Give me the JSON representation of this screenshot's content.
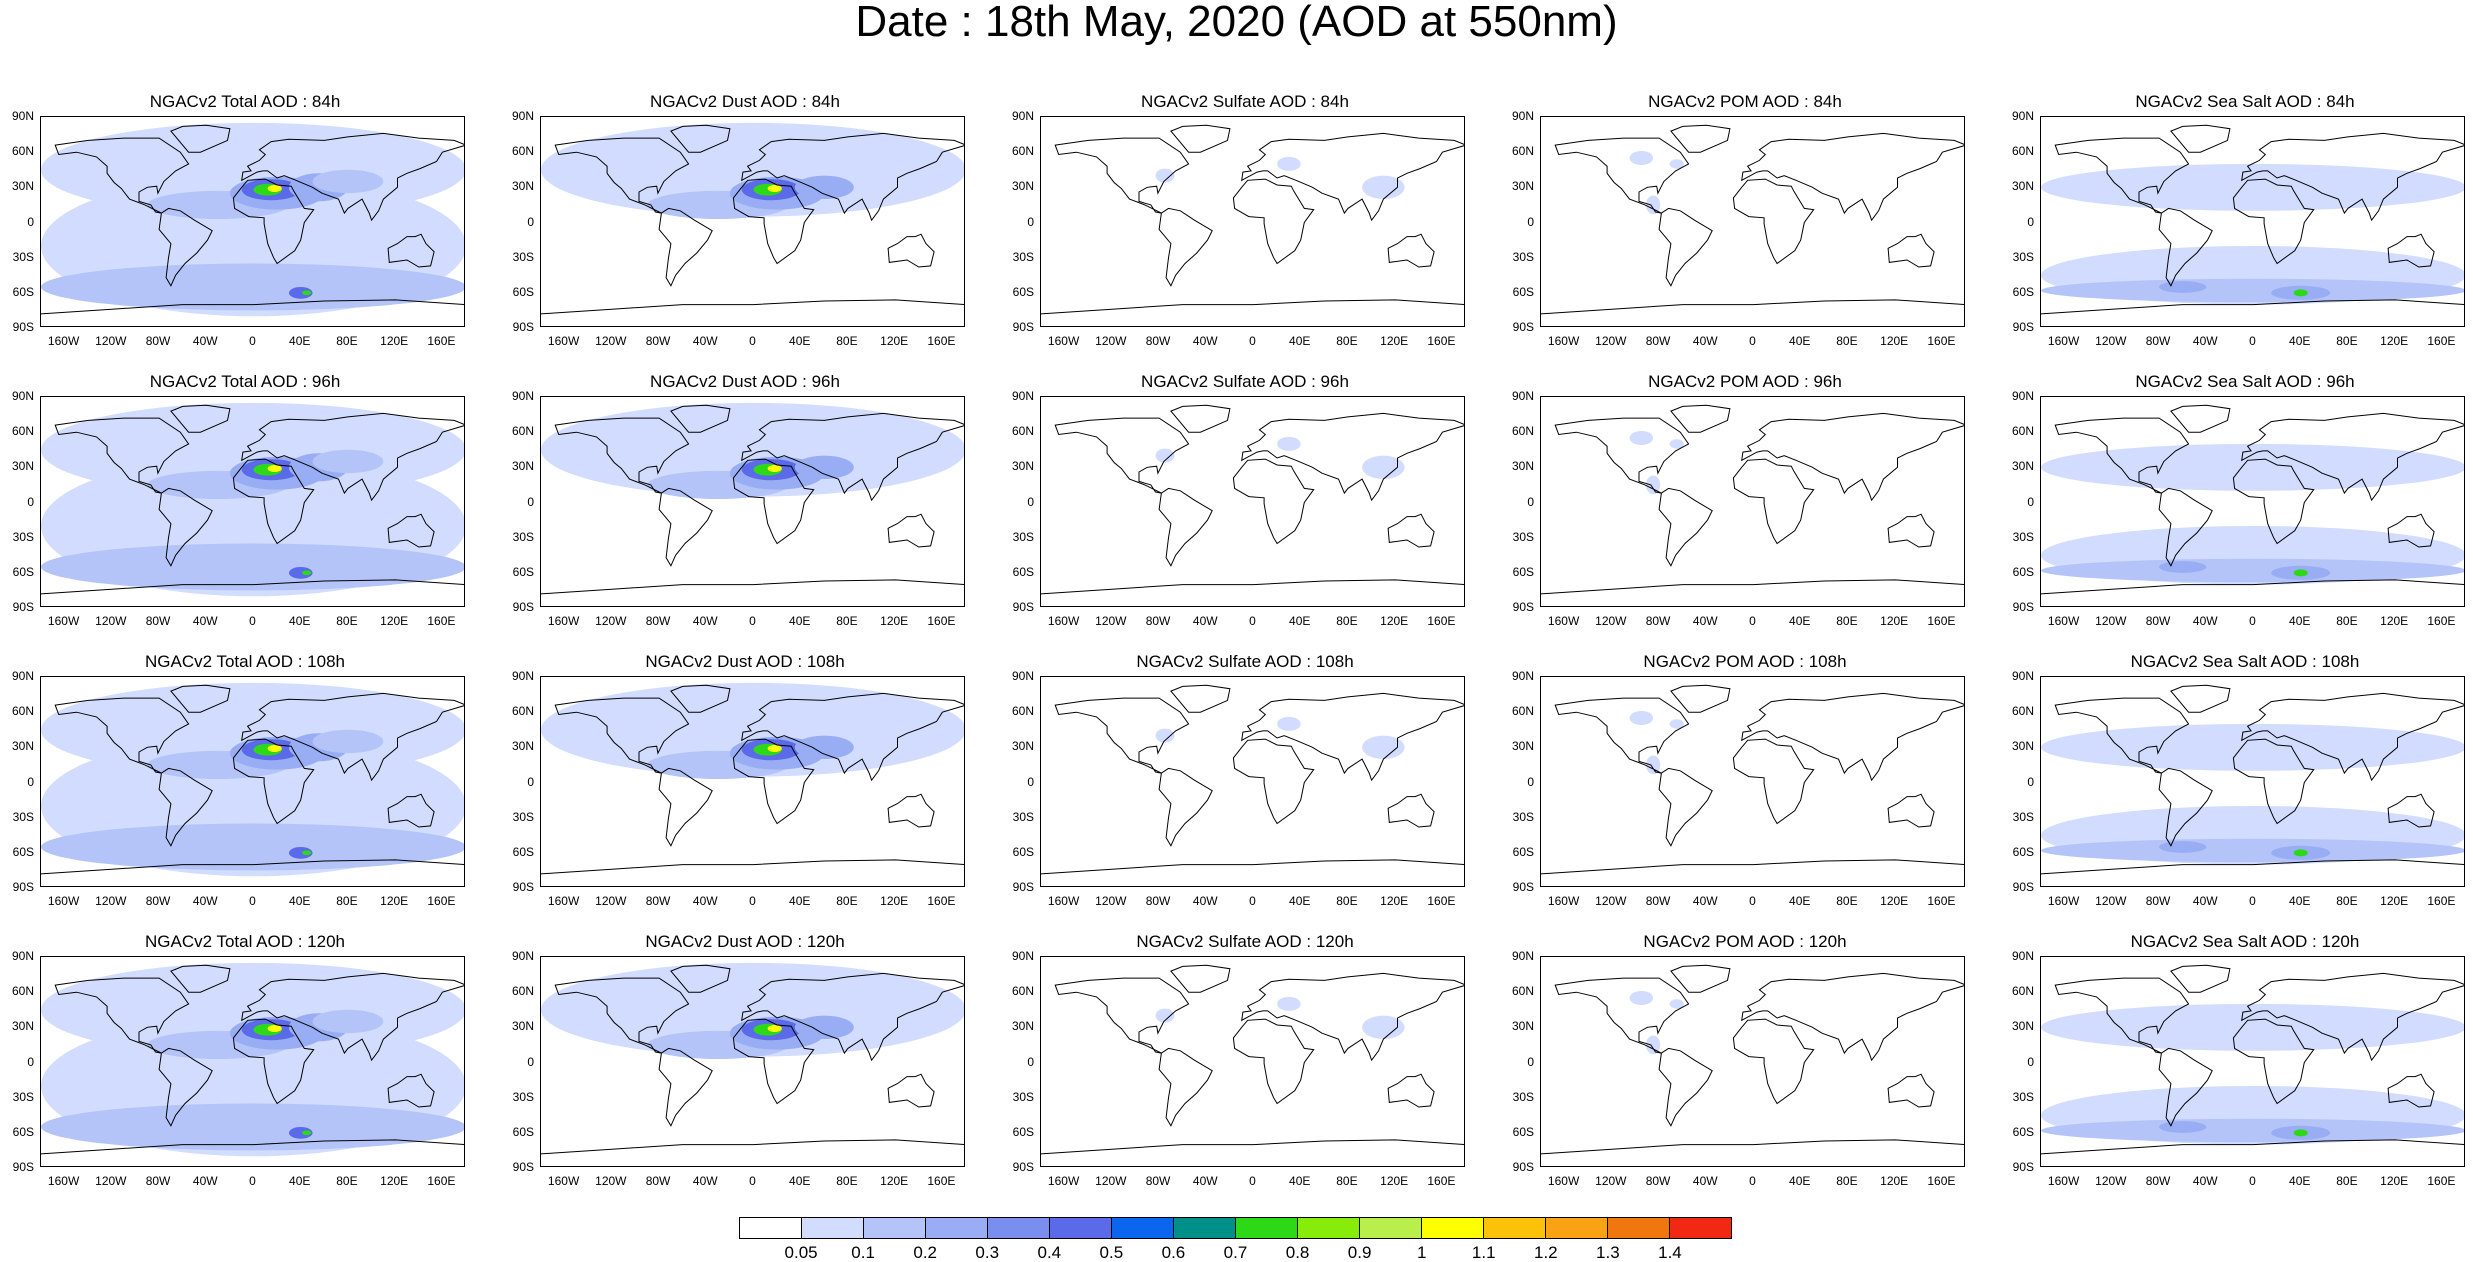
{
  "title": "Date : 18th May, 2020 (AOD at 550nm)",
  "lat_ticks": [
    "90N",
    "60N",
    "30N",
    "0",
    "30S",
    "60S",
    "90S"
  ],
  "lon_ticks_total_dust": [
    "160W",
    "120W",
    "80W",
    "40W",
    "0",
    "40E",
    "80E",
    "120E",
    "160E"
  ],
  "lon_ticks_other": [
    "160W",
    "120W",
    "80W",
    "40W",
    "0",
    "40E",
    "80E",
    "120E",
    "160E"
  ],
  "rows": [
    {
      "panels": [
        "NGACv2 Total AOD : 84h",
        "NGACv2 Dust AOD : 84h",
        "NGACv2 Sulfate AOD : 84h",
        "NGACv2 POM AOD : 84h",
        "NGACv2 Sea Salt AOD : 84h"
      ]
    },
    {
      "panels": [
        "NGACv2 Total AOD : 96h",
        "NGACv2 Dust AOD : 96h",
        "NGACv2 Sulfate AOD : 96h",
        "NGACv2 POM AOD : 96h",
        "NGACv2 Sea Salt AOD : 96h"
      ]
    },
    {
      "panels": [
        "NGACv2 Total AOD : 108h",
        "NGACv2 Dust AOD : 108h",
        "NGACv2 Sulfate AOD : 108h",
        "NGACv2 POM AOD : 108h",
        "NGACv2 Sea Salt AOD : 108h"
      ]
    },
    {
      "panels": [
        "NGACv2 Total AOD : 120h",
        "NGACv2 Dust AOD : 120h",
        "NGACv2 Sulfate AOD : 120h",
        "NGACv2 POM AOD : 120h",
        "NGACv2 Sea Salt  AOD : 120h"
      ]
    }
  ],
  "colorbar": {
    "labels": [
      "0.05",
      "0.1",
      "0.2",
      "0.3",
      "0.4",
      "0.5",
      "0.6",
      "0.7",
      "0.8",
      "0.9",
      "1",
      "1.1",
      "1.2",
      "1.3",
      "1.4"
    ],
    "colors": [
      "#ffffff",
      "#d2dcff",
      "#b4c4f8",
      "#98adf3",
      "#7a8ef0",
      "#5a6ae8",
      "#0a66ee",
      "#00908a",
      "#2dd816",
      "#88ec0a",
      "#b9ef4a",
      "#ffff00",
      "#fcc20a",
      "#f8a214",
      "#f0760e",
      "#f02814"
    ]
  },
  "field_colors": {
    "ocean_light": "#d2dcff",
    "ocean_mid": "#b4c4f8",
    "ocean_deep": "#98adf3",
    "dust_high": "#5a6ae8",
    "hot_green": "#2dd816",
    "hot_yellow": "#ffff00",
    "hot_orange": "#f8a214"
  }
}
